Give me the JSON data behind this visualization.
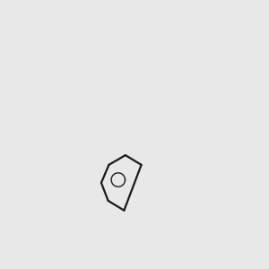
{
  "bg_color": "#e8e8e8",
  "bond_color": "#1a1a1a",
  "double_bond_color": "#1a1a1a",
  "n_color": "#0000cc",
  "o_color": "#cc0000",
  "oh_color": "#008080",
  "figsize": [
    3.0,
    3.0
  ],
  "dpi": 100
}
